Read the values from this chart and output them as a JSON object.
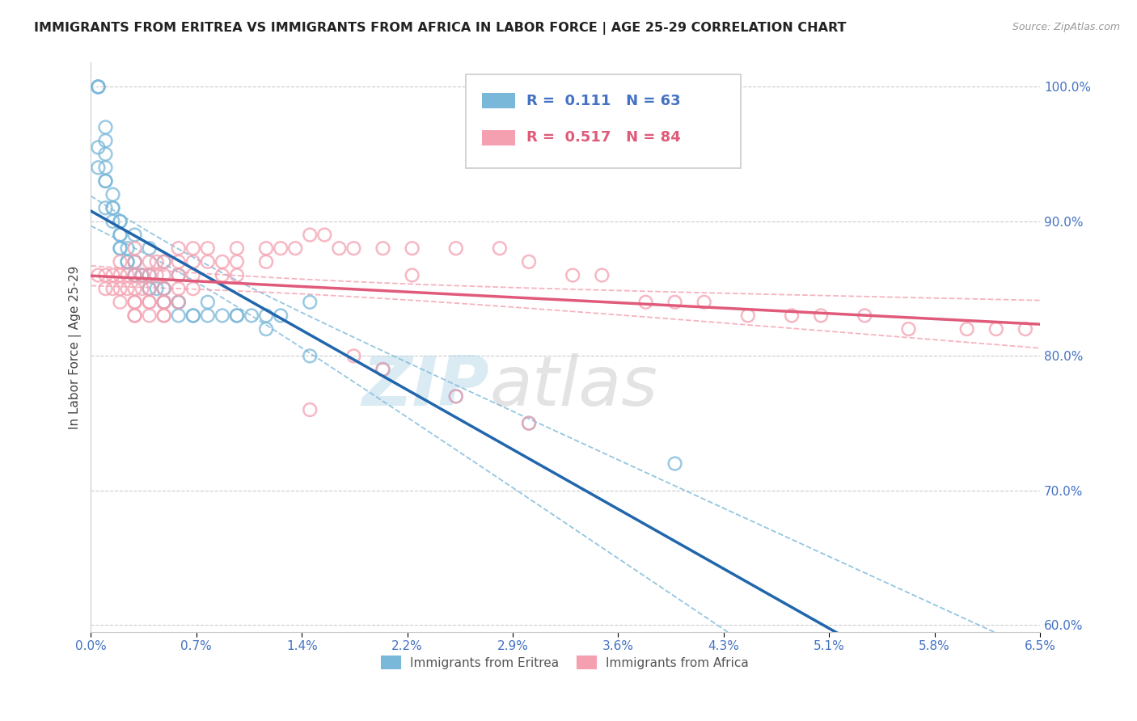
{
  "title": "IMMIGRANTS FROM ERITREA VS IMMIGRANTS FROM AFRICA IN LABOR FORCE | AGE 25-29 CORRELATION CHART",
  "source": "Source: ZipAtlas.com",
  "xlabel": "",
  "ylabel": "In Labor Force | Age 25-29",
  "series1_name": "Immigrants from Eritrea",
  "series2_name": "Immigrants from Africa",
  "series1_color": "#7ab8d9",
  "series2_color": "#f4a0b0",
  "series1_line_color": "#2166ac",
  "series2_line_color": "#e05a7a",
  "series1_R": 0.111,
  "series1_N": 63,
  "series2_R": 0.517,
  "series2_N": 84,
  "xmin": 0.0,
  "xmax": 0.065,
  "ymin": 0.595,
  "ymax": 1.018,
  "yticks": [
    0.6,
    0.7,
    0.8,
    0.9,
    1.0
  ],
  "xtick_count": 9,
  "watermark_zip": "ZIP",
  "watermark_atlas": "atlas",
  "series1_x": [
    0.0005,
    0.0005,
    0.0005,
    0.001,
    0.001,
    0.001,
    0.001,
    0.001,
    0.0015,
    0.0015,
    0.0015,
    0.002,
    0.002,
    0.002,
    0.002,
    0.002,
    0.0025,
    0.0025,
    0.0025,
    0.003,
    0.003,
    0.003,
    0.003,
    0.0035,
    0.0035,
    0.004,
    0.004,
    0.004,
    0.0045,
    0.005,
    0.005,
    0.005,
    0.005,
    0.006,
    0.006,
    0.006,
    0.007,
    0.007,
    0.008,
    0.009,
    0.01,
    0.011,
    0.012,
    0.013,
    0.015,
    0.0005,
    0.0005,
    0.001,
    0.001,
    0.0015,
    0.002,
    0.003,
    0.004,
    0.005,
    0.006,
    0.008,
    0.01,
    0.012,
    0.015,
    0.02,
    0.025,
    0.03,
    0.04
  ],
  "series1_y": [
    1.0,
    1.0,
    1.0,
    0.97,
    0.96,
    0.95,
    0.94,
    0.93,
    0.92,
    0.91,
    0.9,
    0.9,
    0.89,
    0.89,
    0.88,
    0.88,
    0.88,
    0.87,
    0.87,
    0.87,
    0.87,
    0.86,
    0.86,
    0.86,
    0.86,
    0.86,
    0.85,
    0.85,
    0.85,
    0.85,
    0.85,
    0.84,
    0.84,
    0.84,
    0.84,
    0.83,
    0.83,
    0.83,
    0.83,
    0.83,
    0.83,
    0.83,
    0.83,
    0.83,
    0.84,
    0.955,
    0.94,
    0.93,
    0.91,
    0.91,
    0.9,
    0.89,
    0.88,
    0.87,
    0.86,
    0.84,
    0.83,
    0.82,
    0.8,
    0.79,
    0.77,
    0.75,
    0.72
  ],
  "series2_x": [
    0.0005,
    0.001,
    0.001,
    0.0015,
    0.0015,
    0.002,
    0.002,
    0.002,
    0.002,
    0.0025,
    0.0025,
    0.003,
    0.003,
    0.003,
    0.003,
    0.003,
    0.003,
    0.003,
    0.003,
    0.0035,
    0.0035,
    0.004,
    0.004,
    0.004,
    0.004,
    0.004,
    0.004,
    0.0045,
    0.0045,
    0.005,
    0.005,
    0.005,
    0.005,
    0.005,
    0.005,
    0.005,
    0.006,
    0.006,
    0.006,
    0.006,
    0.006,
    0.007,
    0.007,
    0.007,
    0.007,
    0.008,
    0.008,
    0.009,
    0.009,
    0.01,
    0.01,
    0.01,
    0.012,
    0.012,
    0.013,
    0.014,
    0.015,
    0.016,
    0.017,
    0.018,
    0.02,
    0.022,
    0.025,
    0.028,
    0.03,
    0.033,
    0.035,
    0.038,
    0.04,
    0.042,
    0.045,
    0.048,
    0.05,
    0.053,
    0.056,
    0.06,
    0.062,
    0.064,
    0.015,
    0.02,
    0.025,
    0.03,
    0.022,
    0.018
  ],
  "series2_y": [
    0.86,
    0.86,
    0.85,
    0.86,
    0.85,
    0.87,
    0.86,
    0.85,
    0.84,
    0.86,
    0.85,
    0.88,
    0.87,
    0.86,
    0.85,
    0.84,
    0.84,
    0.83,
    0.83,
    0.86,
    0.85,
    0.87,
    0.86,
    0.85,
    0.84,
    0.84,
    0.83,
    0.87,
    0.86,
    0.87,
    0.86,
    0.85,
    0.84,
    0.84,
    0.83,
    0.83,
    0.88,
    0.87,
    0.86,
    0.85,
    0.84,
    0.88,
    0.87,
    0.86,
    0.85,
    0.88,
    0.87,
    0.87,
    0.86,
    0.88,
    0.87,
    0.86,
    0.88,
    0.87,
    0.88,
    0.88,
    0.89,
    0.89,
    0.88,
    0.88,
    0.88,
    0.88,
    0.88,
    0.88,
    0.87,
    0.86,
    0.86,
    0.84,
    0.84,
    0.84,
    0.83,
    0.83,
    0.83,
    0.83,
    0.82,
    0.82,
    0.82,
    0.82,
    0.76,
    0.79,
    0.77,
    0.75,
    0.86,
    0.8
  ]
}
